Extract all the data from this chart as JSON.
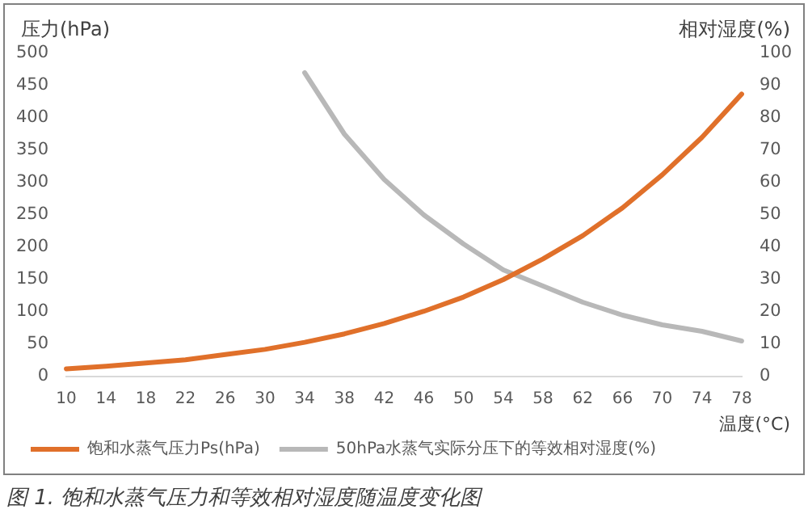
{
  "chart_data": {
    "type": "line",
    "categories": [
      "10",
      "14",
      "18",
      "22",
      "26",
      "30",
      "34",
      "38",
      "42",
      "46",
      "50",
      "54",
      "58",
      "62",
      "66",
      "70",
      "74",
      "78"
    ],
    "series": [
      {
        "name": "饱和水蒸气压力Ps(hPa)",
        "color": "#e0702a",
        "values": [
          12,
          16,
          21,
          26,
          34,
          42,
          53,
          66,
          82,
          101,
          123,
          150,
          182,
          218,
          261,
          312,
          370,
          437
        ]
      },
      {
        "name": "50hPa水蒸气实际分压下的等效相对湿度(%)",
        "color": "#b8b8b8",
        "axis": "y2",
        "values": [
          null,
          null,
          null,
          null,
          null,
          null,
          94,
          75,
          61,
          50,
          41,
          33,
          28,
          23,
          19,
          16,
          14,
          11
        ]
      }
    ],
    "ylabel": "压力(hPa)",
    "y2label": "相对湿度(%)",
    "xlabel": "温度(°C)",
    "ylim": [
      0,
      500
    ],
    "yticks": [
      0,
      50,
      100,
      150,
      200,
      250,
      300,
      350,
      400,
      450,
      500
    ],
    "y2lim": [
      0,
      100
    ],
    "y2ticks": [
      0,
      10,
      20,
      30,
      40,
      50,
      60,
      70,
      80,
      90,
      100
    ],
    "grid": false,
    "legend": "bottom",
    "marker": "none",
    "line_style": "solid",
    "annotations": [
      "图 1. 饱和水蒸气压力和等效相对湿度随温度变化图"
    ]
  }
}
